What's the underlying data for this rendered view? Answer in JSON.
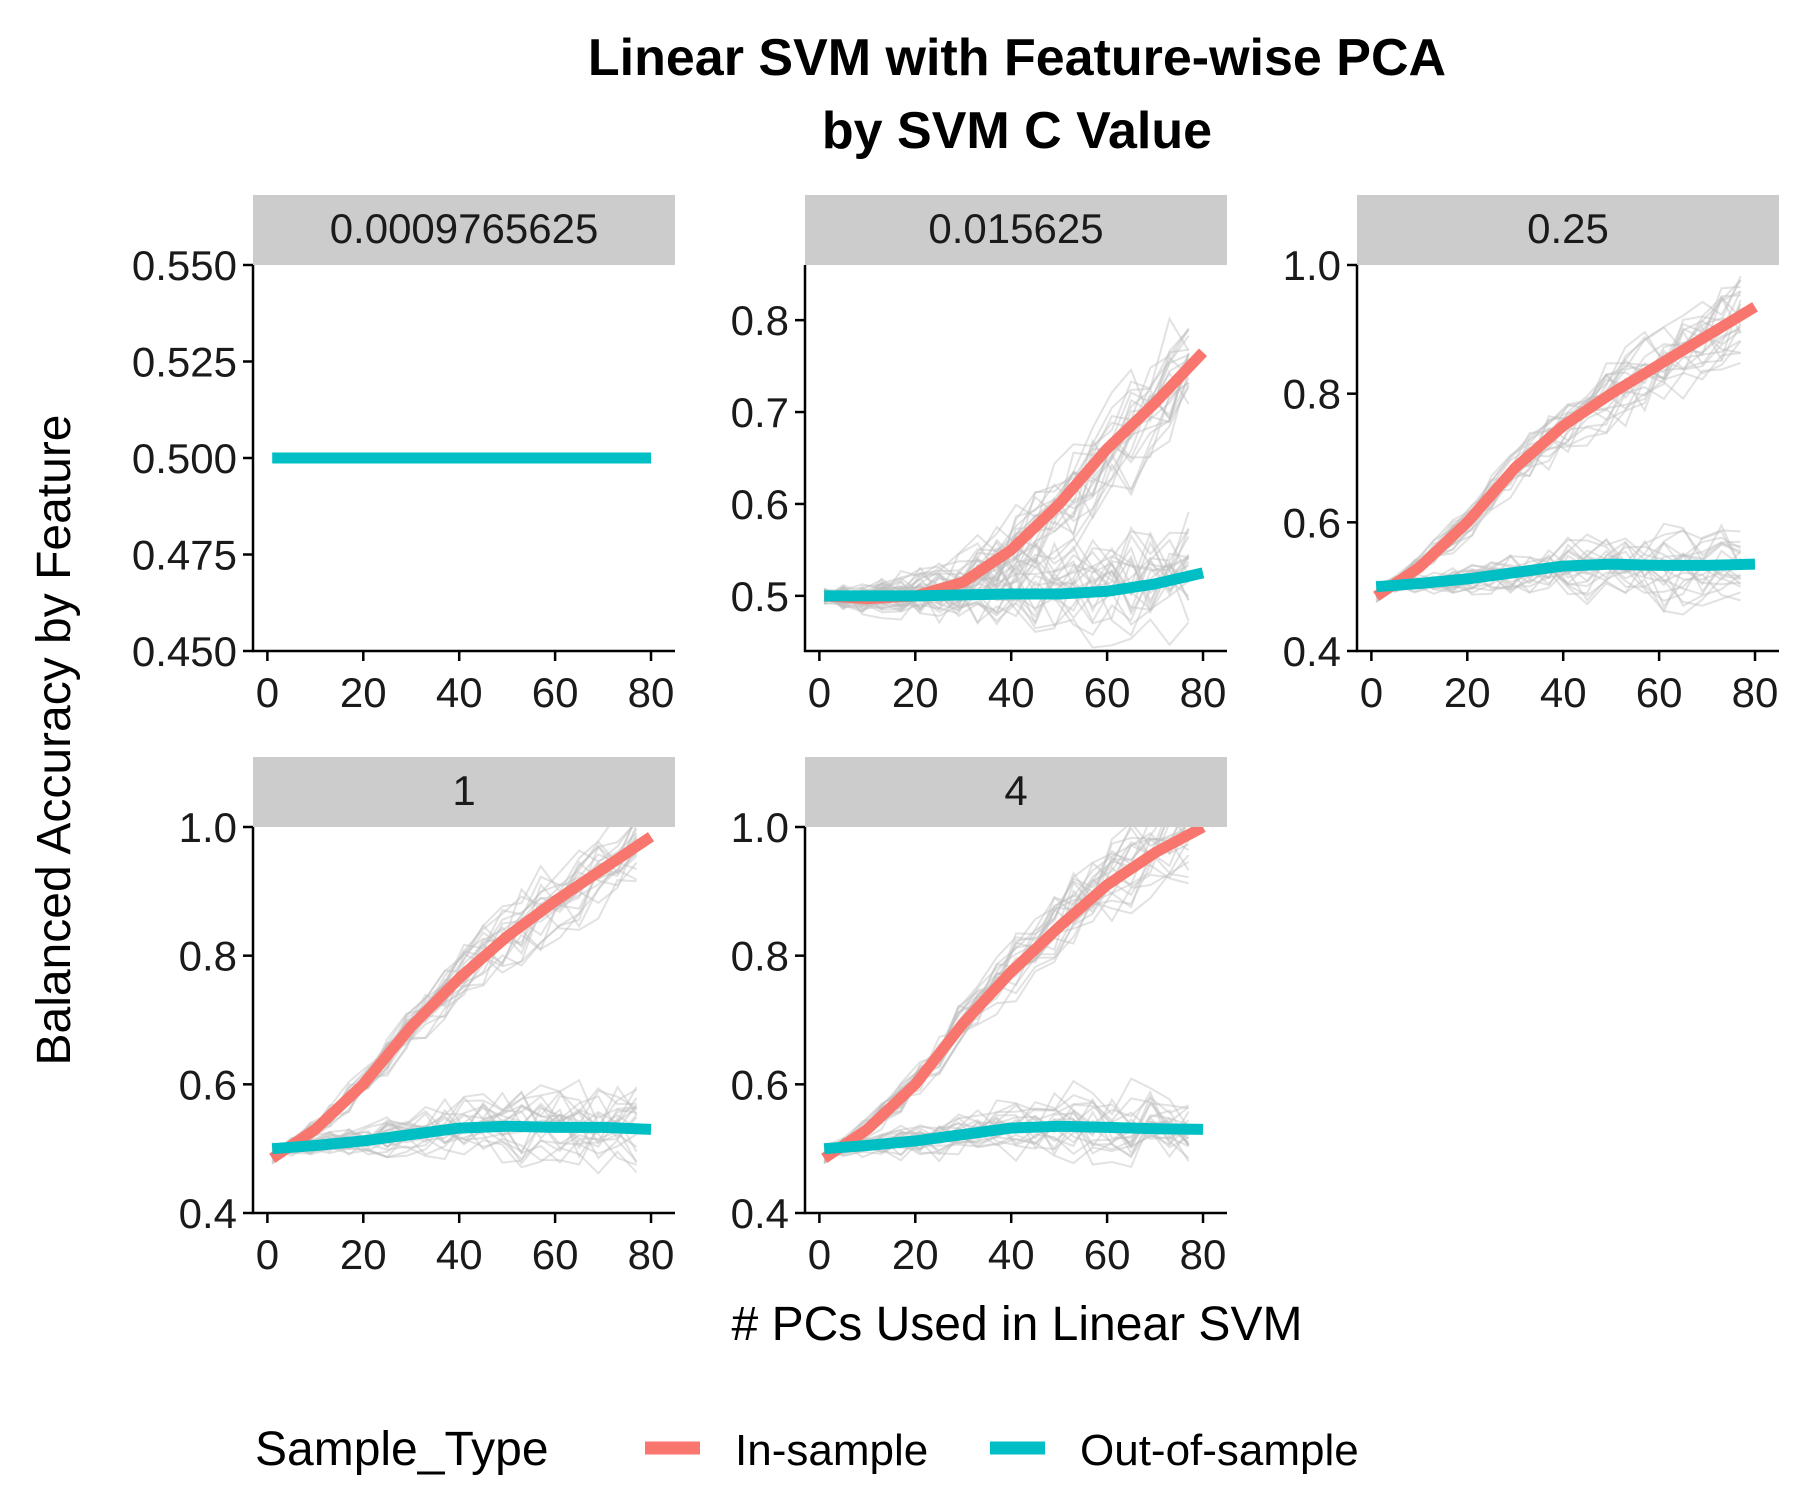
{
  "title_line1": "Linear SVM with Feature-wise PCA",
  "title_line2": "by SVM C Value",
  "xlabel": "# PCs Used in Linear SVM",
  "ylabel": "Balanced Accuracy by Feature",
  "legend": {
    "title": "Sample_Type",
    "entries": [
      {
        "label": "In-sample",
        "color": "#F8766D"
      },
      {
        "label": "Out-of-sample",
        "color": "#00BFC4"
      }
    ]
  },
  "colors": {
    "in_sample": "#F8766D",
    "out_sample": "#00BFC4",
    "individual_lines": "#BEBEBE",
    "strip_bg": "#CCCCCC"
  },
  "chart_data": {
    "type": "line",
    "facet_variable": "SVM C value",
    "xticks": [
      0,
      20,
      40,
      60,
      80
    ],
    "xlim": [
      -3,
      85
    ],
    "background_lines": "many thin grey per-feature lines behind the mean lines",
    "panels": [
      {
        "strip": "0.0009765625",
        "ylim": [
          0.45,
          0.55
        ],
        "yticks": [
          "0.450",
          "0.475",
          "0.500",
          "0.525",
          "0.550"
        ],
        "series": [
          {
            "name": "Out-of-sample",
            "x": [
              1,
              80
            ],
            "y": [
              0.5,
              0.5
            ]
          }
        ]
      },
      {
        "strip": "0.015625",
        "ylim": [
          0.44,
          0.86
        ],
        "yticks": [
          "0.5",
          "0.6",
          "0.7",
          "0.8"
        ],
        "series": [
          {
            "name": "In-sample",
            "x": [
              1,
              10,
              20,
              30,
              40,
              50,
              60,
              70,
              80
            ],
            "y": [
              0.5,
              0.497,
              0.5,
              0.515,
              0.55,
              0.6,
              0.66,
              0.71,
              0.765
            ]
          },
          {
            "name": "Out-of-sample",
            "x": [
              1,
              10,
              20,
              30,
              40,
              50,
              60,
              70,
              80
            ],
            "y": [
              0.5,
              0.5,
              0.5,
              0.501,
              0.502,
              0.502,
              0.505,
              0.513,
              0.525
            ]
          }
        ]
      },
      {
        "strip": "0.25",
        "ylim": [
          0.4,
          1.0
        ],
        "yticks": [
          "0.4",
          "0.6",
          "0.8",
          "1.0"
        ],
        "series": [
          {
            "name": "In-sample",
            "x": [
              1,
              10,
              20,
              30,
              40,
              50,
              60,
              70,
              80
            ],
            "y": [
              0.485,
              0.53,
              0.6,
              0.685,
              0.75,
              0.8,
              0.845,
              0.89,
              0.935
            ]
          },
          {
            "name": "Out-of-sample",
            "x": [
              1,
              10,
              20,
              30,
              40,
              50,
              60,
              70,
              80
            ],
            "y": [
              0.5,
              0.505,
              0.512,
              0.522,
              0.532,
              0.535,
              0.533,
              0.533,
              0.535
            ]
          }
        ]
      },
      {
        "strip": "1",
        "ylim": [
          0.4,
          1.0
        ],
        "yticks": [
          "0.4",
          "0.6",
          "0.8",
          "1.0"
        ],
        "series": [
          {
            "name": "In-sample",
            "x": [
              1,
              10,
              20,
              30,
              40,
              50,
              60,
              70,
              80
            ],
            "y": [
              0.485,
              0.53,
              0.6,
              0.69,
              0.765,
              0.83,
              0.885,
              0.935,
              0.985
            ]
          },
          {
            "name": "Out-of-sample",
            "x": [
              1,
              10,
              20,
              30,
              40,
              50,
              60,
              70,
              80
            ],
            "y": [
              0.5,
              0.505,
              0.512,
              0.522,
              0.532,
              0.535,
              0.533,
              0.533,
              0.53
            ]
          }
        ]
      },
      {
        "strip": "4",
        "ylim": [
          0.4,
          1.0
        ],
        "yticks": [
          "0.4",
          "0.6",
          "0.8",
          "1.0"
        ],
        "series": [
          {
            "name": "In-sample",
            "x": [
              1,
              10,
              20,
              30,
              40,
              50,
              60,
              70,
              80
            ],
            "y": [
              0.485,
              0.53,
              0.6,
              0.695,
              0.775,
              0.845,
              0.91,
              0.96,
              1.0
            ]
          },
          {
            "name": "Out-of-sample",
            "x": [
              1,
              10,
              20,
              30,
              40,
              50,
              60,
              70,
              80
            ],
            "y": [
              0.5,
              0.505,
              0.512,
              0.522,
              0.532,
              0.535,
              0.533,
              0.531,
              0.53
            ]
          }
        ]
      }
    ]
  }
}
